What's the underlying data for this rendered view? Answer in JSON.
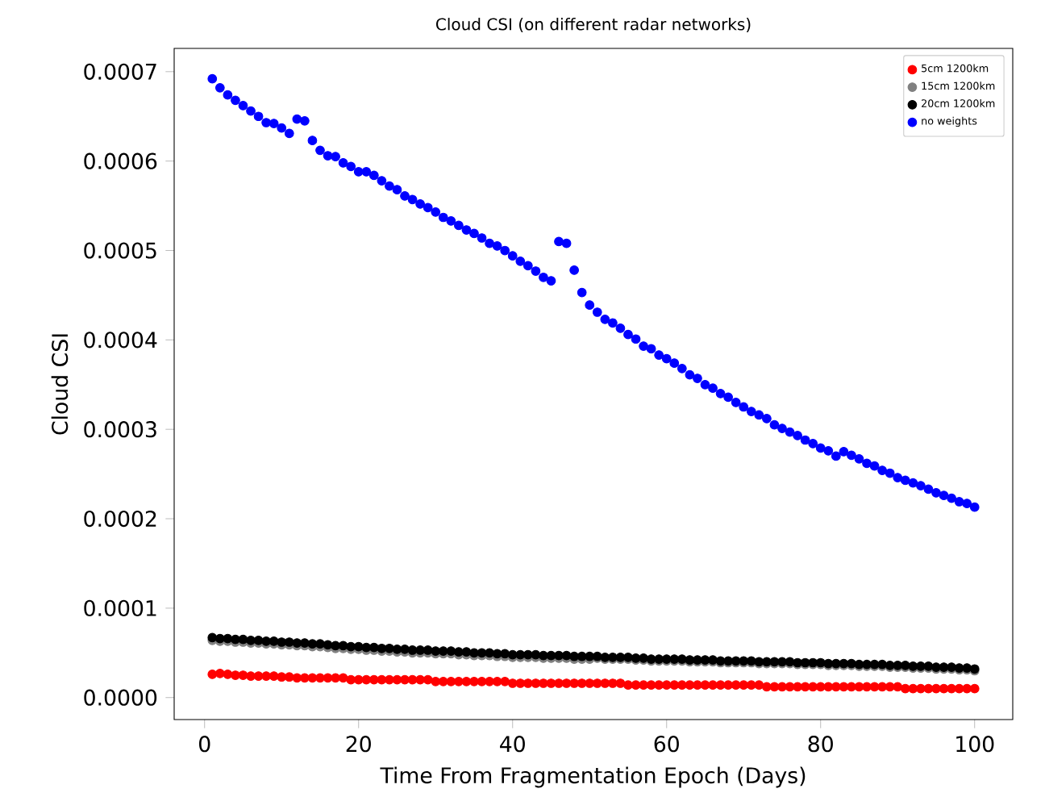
{
  "chart_data": {
    "type": "scatter",
    "title": "Cloud CSI (on different radar networks)",
    "xlabel": "Time From Fragmentation Epoch (Days)",
    "ylabel": "Cloud CSI",
    "x": [
      1,
      2,
      3,
      4,
      5,
      6,
      7,
      8,
      9,
      10,
      11,
      12,
      13,
      14,
      15,
      16,
      17,
      18,
      19,
      20,
      21,
      22,
      23,
      24,
      25,
      26,
      27,
      28,
      29,
      30,
      31,
      32,
      33,
      34,
      35,
      36,
      37,
      38,
      39,
      40,
      41,
      42,
      43,
      44,
      45,
      46,
      47,
      48,
      49,
      50,
      51,
      52,
      53,
      54,
      55,
      56,
      57,
      58,
      59,
      60,
      61,
      62,
      63,
      64,
      65,
      66,
      67,
      68,
      69,
      70,
      71,
      72,
      73,
      74,
      75,
      76,
      77,
      78,
      79,
      80,
      81,
      82,
      83,
      84,
      85,
      86,
      87,
      88,
      89,
      90,
      91,
      92,
      93,
      94,
      95,
      96,
      97,
      98,
      99,
      100
    ],
    "series": [
      {
        "name": "5cm 1200km",
        "color": "#ff0000",
        "values": [
          2.6e-05,
          2.7e-05,
          2.6e-05,
          2.5e-05,
          2.5e-05,
          2.4e-05,
          2.4e-05,
          2.4e-05,
          2.4e-05,
          2.3e-05,
          2.3e-05,
          2.2e-05,
          2.2e-05,
          2.2e-05,
          2.2e-05,
          2.2e-05,
          2.2e-05,
          2.2e-05,
          2e-05,
          2e-05,
          2e-05,
          2e-05,
          2e-05,
          2e-05,
          2e-05,
          2e-05,
          2e-05,
          2e-05,
          2e-05,
          1.8e-05,
          1.8e-05,
          1.8e-05,
          1.8e-05,
          1.8e-05,
          1.8e-05,
          1.8e-05,
          1.8e-05,
          1.8e-05,
          1.8e-05,
          1.6e-05,
          1.6e-05,
          1.6e-05,
          1.6e-05,
          1.6e-05,
          1.6e-05,
          1.6e-05,
          1.6e-05,
          1.6e-05,
          1.6e-05,
          1.6e-05,
          1.6e-05,
          1.6e-05,
          1.6e-05,
          1.6e-05,
          1.4e-05,
          1.4e-05,
          1.4e-05,
          1.4e-05,
          1.4e-05,
          1.4e-05,
          1.4e-05,
          1.4e-05,
          1.4e-05,
          1.4e-05,
          1.4e-05,
          1.4e-05,
          1.4e-05,
          1.4e-05,
          1.4e-05,
          1.4e-05,
          1.4e-05,
          1.4e-05,
          1.2e-05,
          1.2e-05,
          1.2e-05,
          1.2e-05,
          1.2e-05,
          1.2e-05,
          1.2e-05,
          1.2e-05,
          1.2e-05,
          1.2e-05,
          1.2e-05,
          1.2e-05,
          1.2e-05,
          1.2e-05,
          1.2e-05,
          1.2e-05,
          1.2e-05,
          1.2e-05,
          1e-05,
          1e-05,
          1e-05,
          1e-05,
          1e-05,
          1e-05,
          1e-05,
          1e-05,
          1e-05,
          1e-05
        ]
      },
      {
        "name": "15cm 1200km",
        "color": "#808080",
        "values": [
          6.4e-05,
          6.3e-05,
          6.3e-05,
          6.2e-05,
          6.2e-05,
          6.1e-05,
          6.1e-05,
          6e-05,
          6e-05,
          5.9e-05,
          5.9e-05,
          5.8e-05,
          5.8e-05,
          5.7e-05,
          5.7e-05,
          5.6e-05,
          5.5e-05,
          5.5e-05,
          5.4e-05,
          5.4e-05,
          5.3e-05,
          5.3e-05,
          5.2e-05,
          5.2e-05,
          5.1e-05,
          5.1e-05,
          5e-05,
          5e-05,
          5e-05,
          4.9e-05,
          4.9e-05,
          4.9e-05,
          4.8e-05,
          4.8e-05,
          4.7e-05,
          4.7e-05,
          4.7e-05,
          4.6e-05,
          4.6e-05,
          4.5e-05,
          4.5e-05,
          4.5e-05,
          4.5e-05,
          4.4e-05,
          4.4e-05,
          4.4e-05,
          4.4e-05,
          4.3e-05,
          4.3e-05,
          4.3e-05,
          4.4e-05,
          4.3e-05,
          4.3e-05,
          4.3e-05,
          4.3e-05,
          4.2e-05,
          4.2e-05,
          4.1e-05,
          4.1e-05,
          4.1e-05,
          4.1e-05,
          4.1e-05,
          4e-05,
          4e-05,
          4e-05,
          4e-05,
          3.9e-05,
          3.9e-05,
          3.9e-05,
          3.9e-05,
          3.9e-05,
          3.8e-05,
          3.8e-05,
          3.8e-05,
          3.8e-05,
          3.8e-05,
          3.7e-05,
          3.7e-05,
          3.7e-05,
          3.7e-05,
          3.6e-05,
          3.6e-05,
          3.6e-05,
          3.6e-05,
          3.5e-05,
          3.5e-05,
          3.5e-05,
          3.5e-05,
          3.4e-05,
          3.4e-05,
          3.4e-05,
          3.3e-05,
          3.3e-05,
          3.3e-05,
          3.2e-05,
          3.2e-05,
          3.2e-05,
          3.1e-05,
          3.1e-05,
          3e-05
        ]
      },
      {
        "name": "20cm 1200km",
        "color": "#000000",
        "values": [
          6.7e-05,
          6.6e-05,
          6.6e-05,
          6.5e-05,
          6.5e-05,
          6.4e-05,
          6.4e-05,
          6.3e-05,
          6.3e-05,
          6.2e-05,
          6.2e-05,
          6.1e-05,
          6.1e-05,
          6e-05,
          6e-05,
          5.9e-05,
          5.8e-05,
          5.8e-05,
          5.7e-05,
          5.7e-05,
          5.6e-05,
          5.6e-05,
          5.5e-05,
          5.5e-05,
          5.4e-05,
          5.4e-05,
          5.3e-05,
          5.3e-05,
          5.3e-05,
          5.2e-05,
          5.2e-05,
          5.2e-05,
          5.1e-05,
          5.1e-05,
          5e-05,
          5e-05,
          5e-05,
          4.9e-05,
          4.9e-05,
          4.8e-05,
          4.8e-05,
          4.8e-05,
          4.8e-05,
          4.7e-05,
          4.7e-05,
          4.7e-05,
          4.7e-05,
          4.6e-05,
          4.6e-05,
          4.6e-05,
          4.6e-05,
          4.5e-05,
          4.5e-05,
          4.5e-05,
          4.5e-05,
          4.4e-05,
          4.4e-05,
          4.3e-05,
          4.3e-05,
          4.3e-05,
          4.3e-05,
          4.3e-05,
          4.2e-05,
          4.2e-05,
          4.2e-05,
          4.2e-05,
          4.1e-05,
          4.1e-05,
          4.1e-05,
          4.1e-05,
          4.1e-05,
          4e-05,
          4e-05,
          4e-05,
          4e-05,
          4e-05,
          3.9e-05,
          3.9e-05,
          3.9e-05,
          3.9e-05,
          3.8e-05,
          3.8e-05,
          3.8e-05,
          3.8e-05,
          3.7e-05,
          3.7e-05,
          3.7e-05,
          3.7e-05,
          3.6e-05,
          3.6e-05,
          3.6e-05,
          3.5e-05,
          3.5e-05,
          3.5e-05,
          3.4e-05,
          3.4e-05,
          3.4e-05,
          3.3e-05,
          3.3e-05,
          3.2e-05
        ]
      },
      {
        "name": "no weights",
        "color": "#0000ff",
        "values": [
          0.000692,
          0.000682,
          0.000674,
          0.000668,
          0.000662,
          0.000656,
          0.00065,
          0.000643,
          0.000642,
          0.000637,
          0.000631,
          0.000647,
          0.000645,
          0.000623,
          0.000612,
          0.000606,
          0.000605,
          0.000598,
          0.000594,
          0.000588,
          0.000588,
          0.000584,
          0.000578,
          0.000572,
          0.000568,
          0.000561,
          0.000557,
          0.000552,
          0.000548,
          0.000543,
          0.000537,
          0.000533,
          0.000528,
          0.000523,
          0.000519,
          0.000514,
          0.000508,
          0.000505,
          0.0005,
          0.000494,
          0.000488,
          0.000483,
          0.000477,
          0.00047,
          0.000466,
          0.00051,
          0.000508,
          0.000478,
          0.000453,
          0.000439,
          0.000431,
          0.000423,
          0.000419,
          0.000413,
          0.000406,
          0.000401,
          0.000393,
          0.00039,
          0.000383,
          0.000379,
          0.000374,
          0.000368,
          0.000361,
          0.000357,
          0.00035,
          0.000346,
          0.00034,
          0.000336,
          0.00033,
          0.000325,
          0.00032,
          0.000316,
          0.000312,
          0.000305,
          0.000301,
          0.000297,
          0.000293,
          0.000288,
          0.000284,
          0.000279,
          0.000276,
          0.00027,
          0.000275,
          0.000271,
          0.000267,
          0.000262,
          0.000259,
          0.000254,
          0.000251,
          0.000246,
          0.000243,
          0.00024,
          0.000237,
          0.000233,
          0.000229,
          0.000226,
          0.000223,
          0.000219,
          0.000217,
          0.000213
        ]
      }
    ],
    "xlim": [
      -3.95,
      104.95
    ],
    "ylim": [
      -2.46e-05,
      0.000726
    ],
    "xticks": [
      0,
      20,
      40,
      60,
      80,
      100
    ],
    "yticks": [
      {
        "value": 0,
        "label": "0.0000"
      },
      {
        "value": 0.0001,
        "label": "0.0001"
      },
      {
        "value": 0.0002,
        "label": "0.0002"
      },
      {
        "value": 0.0003,
        "label": "0.0003"
      },
      {
        "value": 0.0004,
        "label": "0.0004"
      },
      {
        "value": 0.0005,
        "label": "0.0005"
      },
      {
        "value": 0.0006,
        "label": "0.0006"
      },
      {
        "value": 0.0007,
        "label": "0.0007"
      }
    ],
    "legend": "top right",
    "marker": "circle",
    "grid": false
  }
}
